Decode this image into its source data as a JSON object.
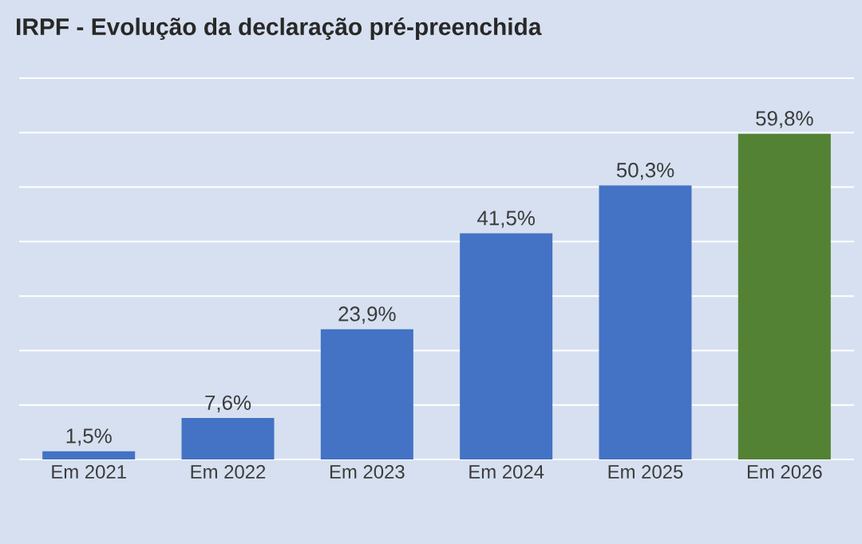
{
  "chart_data": {
    "type": "bar",
    "title": "IRPF - Evolução da declaração pré-preenchida",
    "categories": [
      "Em 2021",
      "Em 2022",
      "Em 2023",
      "Em 2024",
      "Em 2025",
      "Em 2026"
    ],
    "values": [
      1.5,
      7.6,
      23.9,
      41.5,
      50.3,
      59.8
    ],
    "value_labels": [
      "1,5%",
      "7,6%",
      "23,9%",
      "41,5%",
      "50,3%",
      "59,8%"
    ],
    "colors": [
      "#4472c4",
      "#4472c4",
      "#4472c4",
      "#4472c4",
      "#4472c4",
      "#548235"
    ],
    "ylim": [
      0,
      70
    ],
    "yticks": [
      {
        "value": 0,
        "label": null
      },
      {
        "value": 10,
        "label": null
      },
      {
        "value": 20,
        "label": null
      },
      {
        "value": 30,
        "label": null
      },
      {
        "value": 40,
        "label": null
      },
      {
        "value": 50,
        "label": null
      },
      {
        "value": 60,
        "label": null
      },
      {
        "value": 70,
        "label": null
      }
    ],
    "tick_labels": "x",
    "grid": "y"
  }
}
